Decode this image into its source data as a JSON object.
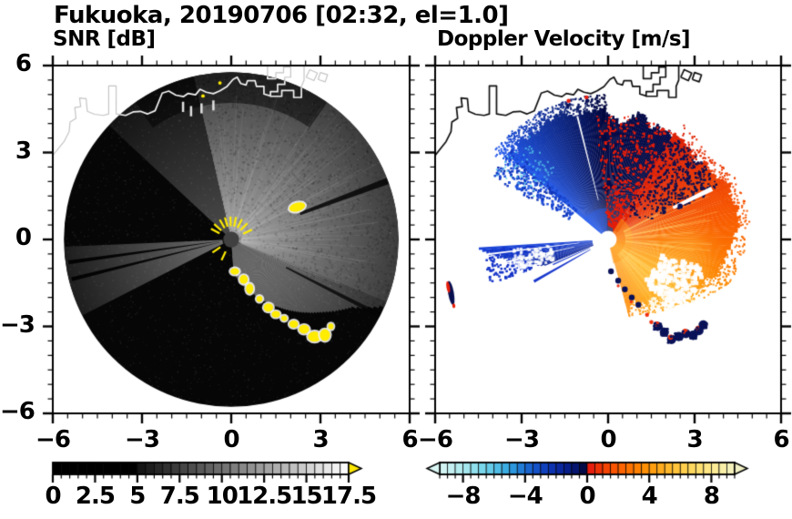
{
  "title": "Fukuoka, 20190706 [02:32, el=1.0]",
  "seed": 20190706,
  "coastline": {
    "land_outline_main": [
      [
        -6,
        2.9
      ],
      [
        -5.62,
        3.38
      ],
      [
        -5.45,
        3.72
      ],
      [
        -5.42,
        4.05
      ],
      [
        -5.22,
        4.18
      ],
      [
        -5.26,
        4.55
      ],
      [
        -5.06,
        4.58
      ],
      [
        -5.1,
        4.88
      ],
      [
        -4.88,
        4.86
      ],
      [
        -4.84,
        4.42
      ],
      [
        -4.6,
        4.32
      ],
      [
        -4.3,
        4.28
      ],
      [
        -4.12,
        4.33
      ],
      [
        -4.12,
        5.3
      ],
      [
        -3.87,
        5.3
      ],
      [
        -3.87,
        4.33
      ],
      [
        -3.55,
        4.28
      ],
      [
        -3.3,
        4.4
      ],
      [
        -3.05,
        4.42
      ],
      [
        -2.82,
        4.33
      ],
      [
        -2.56,
        4.44
      ],
      [
        -2.32,
        5.05
      ],
      [
        -2.1,
        5.12
      ],
      [
        -1.86,
        4.98
      ],
      [
        -1.6,
        4.93
      ],
      [
        -1.45,
        5.04
      ],
      [
        -1.2,
        4.99
      ],
      [
        -1.05,
        5.18
      ],
      [
        -0.84,
        5.08
      ],
      [
        -0.6,
        5.03
      ],
      [
        -0.38,
        5.13
      ],
      [
        -0.14,
        5.28
      ],
      [
        0.06,
        5.52
      ],
      [
        0.2,
        5.6
      ],
      [
        0.32,
        5.38
      ],
      [
        0.5,
        5.33
      ],
      [
        0.55,
        5.48
      ],
      [
        0.8,
        5.48
      ],
      [
        0.85,
        5.28
      ],
      [
        1.1,
        5.28
      ],
      [
        1.1,
        5.02
      ],
      [
        1.3,
        4.96
      ]
    ],
    "islands": [
      [
        [
          1.22,
          6.1
        ],
        [
          1.22,
          5.55
        ],
        [
          1.5,
          5.55
        ],
        [
          1.5,
          5.75
        ],
        [
          1.76,
          5.75
        ],
        [
          1.76,
          5.95
        ],
        [
          2.0,
          5.95
        ],
        [
          2.0,
          5.6
        ],
        [
          1.8,
          5.6
        ],
        [
          1.8,
          5.35
        ],
        [
          1.56,
          5.35
        ],
        [
          1.56,
          5.1
        ],
        [
          1.32,
          5.1
        ],
        [
          1.32,
          4.94
        ],
        [
          1.7,
          4.94
        ],
        [
          1.7,
          5.14
        ],
        [
          2.1,
          5.14
        ],
        [
          2.1,
          4.9
        ],
        [
          2.36,
          4.9
        ],
        [
          2.36,
          5.28
        ],
        [
          2.45,
          5.5
        ],
        [
          2.45,
          6.1
        ]
      ],
      [
        [
          2.52,
          5.6
        ],
        [
          2.78,
          5.48
        ],
        [
          2.9,
          5.74
        ],
        [
          2.64,
          5.86
        ],
        [
          2.52,
          5.6
        ]
      ],
      [
        [
          2.92,
          5.52
        ],
        [
          3.16,
          5.44
        ],
        [
          3.24,
          5.68
        ],
        [
          3.0,
          5.76
        ],
        [
          2.92,
          5.52
        ]
      ]
    ]
  },
  "chart_data": [
    {
      "type": "heatmap",
      "variant": "radar_ppi",
      "panel": "left",
      "title": "SNR [dB]",
      "xlim": [
        -6,
        6
      ],
      "ylim": [
        -6,
        6
      ],
      "xticks": [
        -6,
        -3,
        0,
        3,
        6
      ],
      "yticks": [
        6,
        3,
        0,
        -3,
        -6
      ],
      "xtick_labels": [
        "−6",
        "−3",
        "0",
        "3",
        "6"
      ],
      "ytick_labels": [
        "6",
        "3",
        "0",
        "−3",
        "−6"
      ],
      "minor_tick_step": 0.5,
      "colorbar": {
        "min": 0,
        "max": 17.5,
        "block": 0.5,
        "tick_values": [
          0,
          2.5,
          5,
          7.5,
          10,
          12.5,
          15,
          17.5
        ],
        "tick_labels": [
          "0",
          "2.5",
          "5",
          "7.5",
          "10",
          "12.5",
          "15",
          "17.5"
        ],
        "black_until": 5,
        "ramp_start": "#101010",
        "ramp_end": "#ffffff",
        "over_arrow": "#ffe800"
      },
      "disc": {
        "radius": 5.7,
        "base": "#060606",
        "center_dot_r": 0.27,
        "center_dot_color": "#404040"
      },
      "sectors": [
        {
          "a0": -22,
          "a1": 103,
          "r0": 0.25,
          "r1": 5.7,
          "c0": "#a2a2a2",
          "c1": "#3c3c3c"
        },
        {
          "a0": 103,
          "a1": 137,
          "r0": 0.25,
          "r1": 5.7,
          "c0": "#4a4a4a",
          "c1": "#141414"
        },
        {
          "a0": 182.5,
          "a1": 207,
          "r0": 0.3,
          "r1": 5.7,
          "c0": "#6e6e6e",
          "c1": "#1e1e1e"
        }
      ],
      "shadow_fan": {
        "a0": -86,
        "a1": -22,
        "r0": 0.25,
        "c0": "#8c8c8c",
        "c1": "#2e2e2e",
        "r1_by_angle": [
          [
            -86,
            1.15
          ],
          [
            -70,
            1.9
          ],
          [
            -55,
            2.85
          ],
          [
            -40,
            3.9
          ],
          [
            -30,
            4.7
          ],
          [
            -24,
            5.7
          ],
          [
            -22,
            5.7
          ]
        ]
      },
      "top_dim": {
        "a0": 55,
        "a1": 125,
        "r0": 4.65,
        "r1": 5.75,
        "color": "#000000",
        "alpha": 0.5
      },
      "dark_rays": [
        {
          "a": 20.5,
          "w": 2.2,
          "r0": 2.5,
          "r1": 5.7,
          "c": "#050505",
          "alpha": 0.85
        },
        {
          "a": -27,
          "w": 1.6,
          "r0": 2.1,
          "r1": 5.7,
          "c": "#050505",
          "alpha": 0.8
        },
        {
          "a": 188,
          "w": 1.4,
          "r0": 0.4,
          "r1": 5.6,
          "c": "#000000",
          "alpha": 0.9
        },
        {
          "a": 194,
          "w": 1.4,
          "r0": 0.4,
          "r1": 5.6,
          "c": "#000000",
          "alpha": 0.9
        }
      ],
      "streaks": {
        "count": 90,
        "a0": -25,
        "a1": 104,
        "color": "#ffffff"
      },
      "noise": {
        "light_count": 2800,
        "dark_count": 1500
      },
      "echo_color": "#ffec00",
      "halo_color": "#f2f2f2",
      "echo_blobs": [
        [
          2.22,
          1.12,
          0.55,
          0.3,
          15
        ],
        [
          0.12,
          -1.1,
          0.3,
          0.22,
          0
        ],
        [
          0.42,
          -1.38,
          0.28,
          0.3,
          0
        ],
        [
          0.62,
          -1.7,
          0.25,
          0.35,
          0
        ],
        [
          0.95,
          -2.05,
          0.2,
          0.2,
          0
        ],
        [
          1.25,
          -2.35,
          0.32,
          0.28,
          0
        ],
        [
          1.5,
          -2.58,
          0.28,
          0.22,
          0
        ],
        [
          1.78,
          -2.72,
          0.2,
          0.18,
          0
        ],
        [
          2.1,
          -2.92,
          0.3,
          0.25,
          0
        ],
        [
          2.45,
          -3.1,
          0.35,
          0.3,
          0
        ],
        [
          2.8,
          -3.35,
          0.45,
          0.35,
          0
        ],
        [
          3.15,
          -3.3,
          0.35,
          0.4,
          0
        ],
        [
          3.35,
          -3.0,
          0.18,
          0.2,
          0
        ],
        [
          -5.5,
          -2.25,
          0.26,
          0.8,
          12
        ]
      ],
      "center_dashes": {
        "angles": [
          25,
          45,
          62,
          78,
          92,
          106,
          120,
          138,
          152,
          215,
          245
        ],
        "r0": 0.45,
        "r1": 0.78
      },
      "ship_dashes": [
        [
          -1.62,
          4.75
        ],
        [
          -1.35,
          4.6
        ],
        [
          -1.0,
          4.7
        ],
        [
          -0.6,
          4.8
        ]
      ],
      "coast_specks": [
        [
          -0.95,
          4.95
        ],
        [
          -0.38,
          5.4
        ]
      ],
      "coast_color_over_sea": "#f2f2f2",
      "coast_color_outside": "#c4c4c4"
    },
    {
      "type": "heatmap",
      "variant": "radar_ppi",
      "panel": "right",
      "title": "Doppler Velocity [m/s]",
      "xlim": [
        -6,
        6
      ],
      "ylim": [
        -6,
        6
      ],
      "xticks": [
        -6,
        -3,
        0,
        3,
        6
      ],
      "yticks": [
        6,
        3,
        0,
        -3,
        -6
      ],
      "xtick_labels": [
        "−6",
        "−3",
        "0",
        "3",
        "6"
      ],
      "ytick_labels": [],
      "minor_tick_step": 0.5,
      "colorbar": {
        "min": -9.5,
        "max": 9.5,
        "block": 0.5,
        "tick_values": [
          -8,
          -4,
          0,
          4,
          8
        ],
        "tick_labels": [
          "−8",
          "−4",
          "0",
          "4",
          "8"
        ],
        "stops": [
          [
            -9.5,
            "#d9f6f4"
          ],
          [
            -8,
            "#aeeaee"
          ],
          [
            -6.5,
            "#6fd3ea"
          ],
          [
            -5,
            "#31a4e0"
          ],
          [
            -4,
            "#1b6ed4"
          ],
          [
            -3,
            "#1148c4"
          ],
          [
            -2,
            "#0c2ca8"
          ],
          [
            -1,
            "#071a7e"
          ],
          [
            -0.5,
            "#050f60"
          ],
          [
            -0.02,
            "#03062e"
          ],
          [
            0.02,
            "#e41410"
          ],
          [
            1,
            "#f23c04"
          ],
          [
            2,
            "#fb5c00"
          ],
          [
            3,
            "#fe7a00"
          ],
          [
            4,
            "#ff9708"
          ],
          [
            5,
            "#ffb224"
          ],
          [
            6,
            "#ffc944"
          ],
          [
            7,
            "#ffdd66"
          ],
          [
            8,
            "#fce98c"
          ],
          [
            9,
            "#f6efae"
          ],
          [
            9.5,
            "#f1f0c4"
          ]
        ],
        "under_arrow": "#d9f6f4",
        "over_arrow": "#f1f0c4"
      },
      "hole": {
        "r": 0.27,
        "color": "#ffffff"
      },
      "blue_fan": {
        "a0": 91,
        "a1": 140,
        "r0": 0.3,
        "r1": 4.55,
        "jitter": 0.8,
        "c_right": "#04083e",
        "c_left": "#2257e8",
        "edge_hi": "#2a62ee"
      },
      "blue_frag": {
        "count": 260,
        "a0": 136,
        "a1": 152,
        "rmin": 1.5,
        "rmax": 4.6
      },
      "cyan_speck": {
        "color": "#55c8e8",
        "count": 70,
        "a0": 126,
        "a1": 150,
        "rmin": 3.0,
        "rmax": 4.6
      },
      "navy_wedge": {
        "a0": 58,
        "a1": 91,
        "r0": 0.3,
        "r1": 4.3,
        "jitter": 0.7,
        "c": "#060c48"
      },
      "red_speckle": {
        "color": "#e81c08",
        "count": 620,
        "a0": 50,
        "a1": 96,
        "rmin": 0.4,
        "rmax": 4.35
      },
      "warm_fan": {
        "r0": 0.3,
        "jitter": 0.5,
        "stops": [
          [
            -75,
            "#ff9820",
            2.3
          ],
          [
            -55,
            "#ffa81e",
            2.6
          ],
          [
            -38,
            "#ffae1c",
            3.1
          ],
          [
            -20,
            "#fe8c08",
            4.0
          ],
          [
            -5,
            "#fb7202",
            4.3
          ],
          [
            10,
            "#f85c02",
            4.55
          ],
          [
            25,
            "#f04804",
            4.5
          ],
          [
            40,
            "#e63006",
            4.1
          ],
          [
            58,
            "#dc2007",
            4.4
          ]
        ]
      },
      "blue_inner": "#2d64f5",
      "warm_inner": "#ff9a1e",
      "amber_blobs": [
        [
          1.9,
          -0.85,
          1.7,
          "#ffc846",
          0.5
        ],
        [
          2.9,
          -0.2,
          1.1,
          "#ffb93c",
          0.35
        ]
      ],
      "amber_streaks": {
        "count": 42,
        "a0": -60,
        "a1": 30,
        "color": "#ffdc78",
        "alpha": 0.25
      },
      "se_holes": {
        "count": 260,
        "a0": -50,
        "a1": -15,
        "rmin": 1.8,
        "rmax": 3.4
      },
      "navy_speckle": {
        "color": "#0a1050",
        "count": 420,
        "a0": 25,
        "a1": 60,
        "rmin": 1.0,
        "rmax": 4.2
      },
      "south_fringe": [
        [
          0.1,
          -1.1
        ],
        [
          0.35,
          -1.42
        ],
        [
          0.58,
          -1.72
        ],
        [
          0.82,
          -2.0
        ],
        [
          1.05,
          -2.25
        ]
      ],
      "fringe_navy": "#0a1258",
      "fringe_red": "#ee3010",
      "bottom_chain": [
        [
          1.72,
          -3.0
        ],
        [
          1.95,
          -3.2
        ],
        [
          2.2,
          -3.45
        ],
        [
          2.45,
          -3.35
        ],
        [
          2.7,
          -3.25
        ],
        [
          2.95,
          -3.3
        ],
        [
          3.15,
          -3.15
        ],
        [
          3.3,
          -2.95
        ]
      ],
      "extra_red": [
        [
          1.35,
          -2.6
        ],
        [
          1.5,
          -2.85
        ]
      ],
      "west_wedge": {
        "a0": 183.5,
        "a1": 202,
        "r0": 0.55,
        "r1_start": 4.35,
        "r1_end": 2.2,
        "c_top": "#1a44d8",
        "c_bot": "#0c2496"
      },
      "west_frag": {
        "count": 170,
        "a0": 184,
        "a1": 200,
        "rmin": 2.6,
        "rmax": 4.35,
        "color": "#1433c8"
      },
      "west_holes": {
        "count": 120,
        "a0": 185,
        "a1": 199,
        "rmin": 2.0,
        "rmax": 3.4
      },
      "thin_rays": [
        {
          "a": 209.5,
          "w": 1.8,
          "r0": 0.7,
          "r1": 2.95,
          "c": "#1a38cc"
        },
        {
          "a": 204.5,
          "w": 1.0,
          "r0": 0.7,
          "r1": 2.1,
          "c": "#1a38cc"
        }
      ],
      "white_rays": [
        {
          "a": 26,
          "w": 2.4,
          "r0": 2.5,
          "r1": 4.0
        },
        {
          "a": 187,
          "w": 0.9,
          "r0": 1.0,
          "r1": 4.2
        },
        {
          "a": 192.5,
          "w": 0.9,
          "r0": 1.2,
          "r1": 3.9
        },
        {
          "a": 104,
          "w": 0.8,
          "r0": 1.4,
          "r1": 4.4
        },
        {
          "a": 243,
          "w": 1.3,
          "r0": 0.35,
          "r1": 1.3
        }
      ],
      "ray_dot": [
        2.5,
        1.15
      ],
      "sliver": {
        "x": -5.45,
        "y": -1.85,
        "w": 0.2,
        "h": 0.85,
        "rot": 10,
        "navy": "#081050",
        "red": "#e81c08"
      },
      "top_specks": [
        [
          -1.4,
          4.62,
          "#0a1258"
        ],
        [
          -1.37,
          4.78,
          "#e82010"
        ],
        [
          -0.75,
          4.9,
          "#e82010"
        ],
        [
          -0.72,
          4.78,
          "#0a1258"
        ]
      ],
      "coast_color": "#111111"
    }
  ]
}
